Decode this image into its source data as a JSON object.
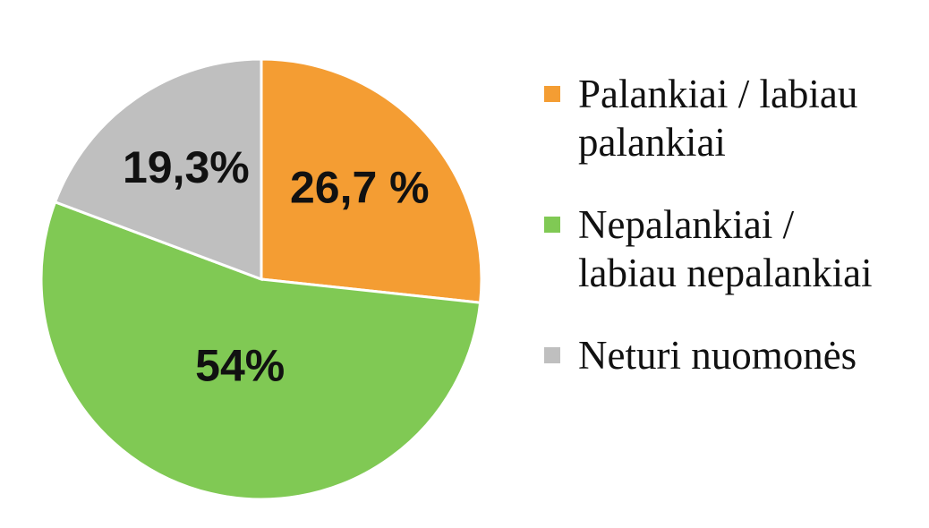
{
  "chart_data": {
    "type": "pie",
    "categories": [
      "Palankiai / labiau palankiai",
      "Nepalankiai / labiau nepalankiai",
      "Neturi nuomonės"
    ],
    "values": [
      26.7,
      54,
      19.3
    ],
    "value_labels": [
      "26,7 %",
      "54%",
      "19,3%"
    ],
    "colors": [
      "#f49d33",
      "#80c954",
      "#bfbfbf"
    ],
    "legend": "right"
  }
}
